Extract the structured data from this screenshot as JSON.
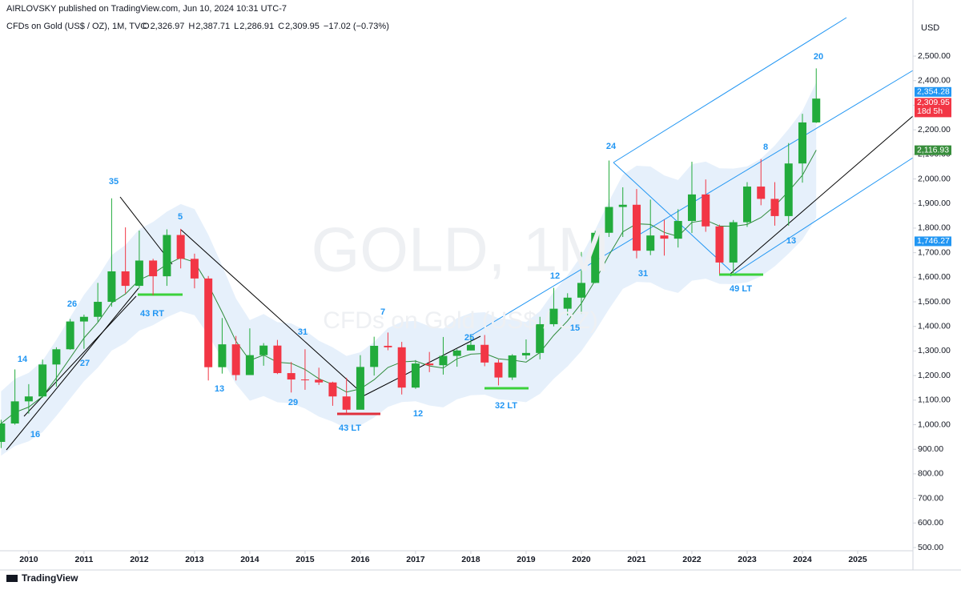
{
  "header": {
    "publisher": "AIRLOVSKY published on TradingView.com, Jun 10, 2024 10:31 UTC-7",
    "symbol": "CFDs on Gold (US$ / OZ), 1M, TVC",
    "ohlc": [
      {
        "key": "O",
        "value": 2326.97,
        "label": "2,326.97"
      },
      {
        "key": "H",
        "value": 2387.71,
        "label": "2,387.71"
      },
      {
        "key": "L",
        "value": 2286.91,
        "label": "2,286.91"
      },
      {
        "key": "C",
        "value": 2309.95,
        "label": "2,309.95"
      }
    ],
    "change": "−17.02 (−0.73%)",
    "currency": "USD"
  },
  "watermark": {
    "symbol": "GOLD, 1M",
    "name": "CFDs on Gold (US$ / OZ)"
  },
  "footer": {
    "brand": "TradingView"
  },
  "chart_data": {
    "type": "candlestick",
    "x": [
      2009.5,
      2009.75,
      2010,
      2010.25,
      2010.5,
      2010.75,
      2011,
      2011.25,
      2011.5,
      2011.75,
      2012,
      2012.25,
      2012.5,
      2012.75,
      2013,
      2013.25,
      2013.5,
      2013.75,
      2014,
      2014.25,
      2014.5,
      2014.75,
      2015,
      2015.25,
      2015.5,
      2015.75,
      2016,
      2016.25,
      2016.5,
      2016.75,
      2017,
      2017.25,
      2017.5,
      2017.75,
      2018,
      2018.25,
      2018.5,
      2018.75,
      2019,
      2019.25,
      2019.5,
      2019.75,
      2020,
      2020.25,
      2020.5,
      2020.75,
      2021,
      2021.25,
      2021.5,
      2021.75,
      2022,
      2022.25,
      2022.5,
      2022.75,
      2023,
      2023.25,
      2023.5,
      2023.75,
      2024,
      2024.25
    ],
    "open": [
      930,
      1005,
      1095,
      1115,
      1245,
      1307,
      1420,
      1439,
      1500,
      1624,
      1565,
      1668,
      1604,
      1772,
      1675,
      1595,
      1234,
      1327,
      1202,
      1283,
      1322,
      1210,
      1184,
      1183,
      1172,
      1115,
      1061,
      1235,
      1321,
      1315,
      1151,
      1249,
      1242,
      1280,
      1302,
      1325,
      1253,
      1192,
      1282,
      1292,
      1409,
      1472,
      1517,
      1577,
      1781,
      1886,
      1895,
      1708,
      1770,
      1757,
      1829,
      1937,
      1807,
      1660,
      1824,
      1969,
      1919,
      1849,
      2063,
      2230
    ],
    "high": [
      1020,
      1225,
      1165,
      1265,
      1315,
      1430,
      1448,
      1577,
      1921,
      1803,
      1790,
      1675,
      1795,
      1797,
      1696,
      1605,
      1434,
      1361,
      1392,
      1332,
      1345,
      1255,
      1307,
      1232,
      1175,
      1191,
      1283,
      1358,
      1375,
      1337,
      1263,
      1296,
      1357,
      1307,
      1366,
      1365,
      1265,
      1287,
      1347,
      1439,
      1557,
      1535,
      1703,
      1789,
      2075,
      1966,
      1959,
      1916,
      1834,
      1877,
      2070,
      1998,
      1814,
      1833,
      1987,
      2081,
      1987,
      2146,
      2265,
      2450
    ],
    "low": [
      905,
      1000,
      1045,
      1110,
      1155,
      1305,
      1309,
      1419,
      1480,
      1535,
      1555,
      1527,
      1565,
      1636,
      1555,
      1180,
      1208,
      1180,
      1202,
      1240,
      1206,
      1131,
      1142,
      1162,
      1077,
      1046,
      1062,
      1200,
      1303,
      1123,
      1146,
      1214,
      1204,
      1236,
      1302,
      1238,
      1160,
      1182,
      1266,
      1266,
      1400,
      1445,
      1451,
      1576,
      1764,
      1764,
      1677,
      1690,
      1688,
      1721,
      1780,
      1785,
      1615,
      1617,
      1805,
      1893,
      1810,
      1810,
      1985,
      2228
    ],
    "close": [
      1005,
      1095,
      1115,
      1245,
      1307,
      1420,
      1439,
      1500,
      1624,
      1565,
      1668,
      1604,
      1772,
      1675,
      1595,
      1234,
      1327,
      1202,
      1283,
      1322,
      1210,
      1184,
      1183,
      1172,
      1115,
      1061,
      1235,
      1321,
      1315,
      1151,
      1249,
      1242,
      1280,
      1302,
      1325,
      1253,
      1192,
      1282,
      1292,
      1409,
      1472,
      1517,
      1577,
      1781,
      1886,
      1895,
      1708,
      1770,
      1757,
      1829,
      1937,
      1807,
      1660,
      1824,
      1969,
      1919,
      1849,
      2063,
      2230,
      2327
    ],
    "up_color": "#22ab3c",
    "down_color": "#f23645",
    "band_color": "#dbeafa",
    "ma_color": "#2e8b3a",
    "xlim": [
      2009.48,
      2026.0
    ],
    "xticks": [
      2010,
      2011,
      2012,
      2013,
      2014,
      2015,
      2016,
      2017,
      2018,
      2019,
      2020,
      2021,
      2022,
      2023,
      2024,
      2025
    ],
    "ylim": [
      487,
      2637
    ],
    "yticks": [
      {
        "value": 500,
        "label": "500.00"
      },
      {
        "value": 600,
        "label": "600.00"
      },
      {
        "value": 700,
        "label": "700.00"
      },
      {
        "value": 800,
        "label": "800.00"
      },
      {
        "value": 900,
        "label": "900.00"
      },
      {
        "value": 1000,
        "label": "1,000.00"
      },
      {
        "value": 1100,
        "label": "1,100.00"
      },
      {
        "value": 1200,
        "label": "1,200.00"
      },
      {
        "value": 1300,
        "label": "1,300.00"
      },
      {
        "value": 1400,
        "label": "1,400.00"
      },
      {
        "value": 1500,
        "label": "1,500.00"
      },
      {
        "value": 1600,
        "label": "1,600.00"
      },
      {
        "value": 1700,
        "label": "1,700.00"
      },
      {
        "value": 1800,
        "label": "1,800.00"
      },
      {
        "value": 1900,
        "label": "1,900.00"
      },
      {
        "value": 2000,
        "label": "2,000.00"
      },
      {
        "value": 2100,
        "label": "2,100.00"
      },
      {
        "value": 2200,
        "label": "2,200.00"
      },
      {
        "value": 2300,
        "label": "2,300.00"
      },
      {
        "value": 2400,
        "label": "2,400.00"
      },
      {
        "value": 2500,
        "label": "2,500.00"
      }
    ],
    "grid": false,
    "price_labels": [
      {
        "value": 2354.28,
        "label": "2,354.28",
        "color": "#2196f3"
      },
      {
        "value": 2309.95,
        "label": "2,309.95",
        "note": "18d 5h",
        "color": "#f23645"
      },
      {
        "value": 2116.93,
        "label": "2,116.93",
        "color": "#388e3c"
      },
      {
        "value": 1746.27,
        "label": "1,746.27",
        "color": "#2196f3"
      }
    ],
    "annotations": [
      "14",
      "16",
      "26",
      "27",
      "35",
      "43 RT",
      "5",
      "13",
      "31",
      "29",
      "43 LT",
      "7",
      "12",
      "25",
      "32 LT",
      "12",
      "15",
      "24",
      "31",
      "8",
      "49 LT",
      "13",
      "20"
    ]
  }
}
